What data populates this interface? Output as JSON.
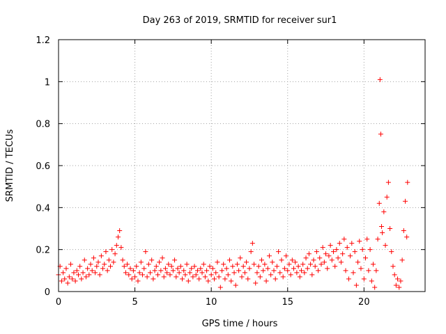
{
  "chart_data": {
    "type": "scatter",
    "title": "Day 263 of 2019, SRMTID for receiver sur1",
    "xlabel": "GPS time / hours",
    "ylabel": "SRMTID / TECUs",
    "xlim": [
      0,
      24
    ],
    "ylim": [
      0,
      1.2
    ],
    "xticks": [
      0,
      5,
      10,
      15,
      20
    ],
    "yticks": [
      0,
      0.2,
      0.4,
      0.6,
      0.8,
      1,
      1.2
    ],
    "xtick_labels": [
      "0",
      "5",
      "10",
      "15",
      "20"
    ],
    "ytick_labels": [
      "0",
      "0.2",
      "0.4",
      "0.6",
      "0.8",
      "1",
      "1.2"
    ],
    "grid": true,
    "marker": "+",
    "color": "#ff0000",
    "series": [
      {
        "name": "sur1",
        "points": [
          [
            0.0,
            0.08
          ],
          [
            0.1,
            0.12
          ],
          [
            0.2,
            0.05
          ],
          [
            0.3,
            0.09
          ],
          [
            0.4,
            0.06
          ],
          [
            0.5,
            0.11
          ],
          [
            0.6,
            0.04
          ],
          [
            0.7,
            0.07
          ],
          [
            0.8,
            0.13
          ],
          [
            0.9,
            0.06
          ],
          [
            1.0,
            0.09
          ],
          [
            1.1,
            0.05
          ],
          [
            1.2,
            0.1
          ],
          [
            1.3,
            0.08
          ],
          [
            1.4,
            0.12
          ],
          [
            1.5,
            0.06
          ],
          [
            1.6,
            0.09
          ],
          [
            1.7,
            0.15
          ],
          [
            1.8,
            0.07
          ],
          [
            1.9,
            0.11
          ],
          [
            2.0,
            0.08
          ],
          [
            2.1,
            0.13
          ],
          [
            2.2,
            0.1
          ],
          [
            2.3,
            0.16
          ],
          [
            2.4,
            0.09
          ],
          [
            2.5,
            0.12
          ],
          [
            2.6,
            0.14
          ],
          [
            2.7,
            0.08
          ],
          [
            2.8,
            0.17
          ],
          [
            2.9,
            0.11
          ],
          [
            3.0,
            0.13
          ],
          [
            3.1,
            0.19
          ],
          [
            3.2,
            0.1
          ],
          [
            3.3,
            0.15
          ],
          [
            3.4,
            0.12
          ],
          [
            3.5,
            0.2
          ],
          [
            3.6,
            0.14
          ],
          [
            3.7,
            0.18
          ],
          [
            3.8,
            0.22
          ],
          [
            3.9,
            0.26
          ],
          [
            4.0,
            0.29
          ],
          [
            4.1,
            0.21
          ],
          [
            4.2,
            0.15
          ],
          [
            4.3,
            0.12
          ],
          [
            4.4,
            0.09
          ],
          [
            4.5,
            0.13
          ],
          [
            4.6,
            0.08
          ],
          [
            4.7,
            0.11
          ],
          [
            4.8,
            0.06
          ],
          [
            4.9,
            0.1
          ],
          [
            5.0,
            0.07
          ],
          [
            5.1,
            0.12
          ],
          [
            5.2,
            0.05
          ],
          [
            5.3,
            0.09
          ],
          [
            5.4,
            0.14
          ],
          [
            5.5,
            0.08
          ],
          [
            5.6,
            0.11
          ],
          [
            5.7,
            0.19
          ],
          [
            5.8,
            0.07
          ],
          [
            5.9,
            0.13
          ],
          [
            6.0,
            0.09
          ],
          [
            6.1,
            0.15
          ],
          [
            6.2,
            0.06
          ],
          [
            6.3,
            0.1
          ],
          [
            6.4,
            0.12
          ],
          [
            6.5,
            0.08
          ],
          [
            6.6,
            0.14
          ],
          [
            6.7,
            0.1
          ],
          [
            6.8,
            0.16
          ],
          [
            6.9,
            0.07
          ],
          [
            7.0,
            0.11
          ],
          [
            7.1,
            0.09
          ],
          [
            7.2,
            0.13
          ],
          [
            7.3,
            0.08
          ],
          [
            7.4,
            0.12
          ],
          [
            7.5,
            0.1
          ],
          [
            7.6,
            0.15
          ],
          [
            7.7,
            0.07
          ],
          [
            7.8,
            0.11
          ],
          [
            7.9,
            0.09
          ],
          [
            8.0,
            0.12
          ],
          [
            8.1,
            0.06
          ],
          [
            8.2,
            0.1
          ],
          [
            8.3,
            0.08
          ],
          [
            8.4,
            0.13
          ],
          [
            8.5,
            0.05
          ],
          [
            8.6,
            0.09
          ],
          [
            8.7,
            0.11
          ],
          [
            8.8,
            0.07
          ],
          [
            8.9,
            0.12
          ],
          [
            9.0,
            0.08
          ],
          [
            9.1,
            0.1
          ],
          [
            9.2,
            0.06
          ],
          [
            9.3,
            0.11
          ],
          [
            9.4,
            0.09
          ],
          [
            9.5,
            0.13
          ],
          [
            9.6,
            0.07
          ],
          [
            9.7,
            0.1
          ],
          [
            9.8,
            0.05
          ],
          [
            9.9,
            0.12
          ],
          [
            10.0,
            0.08
          ],
          [
            10.1,
            0.11
          ],
          [
            10.2,
            0.06
          ],
          [
            10.3,
            0.09
          ],
          [
            10.4,
            0.14
          ],
          [
            10.5,
            0.07
          ],
          [
            10.6,
            0.02
          ],
          [
            10.7,
            0.1
          ],
          [
            10.8,
            0.13
          ],
          [
            10.9,
            0.06
          ],
          [
            11.0,
            0.11
          ],
          [
            11.1,
            0.08
          ],
          [
            11.2,
            0.15
          ],
          [
            11.3,
            0.05
          ],
          [
            11.4,
            0.12
          ],
          [
            11.5,
            0.09
          ],
          [
            11.6,
            0.03
          ],
          [
            11.7,
            0.13
          ],
          [
            11.8,
            0.1
          ],
          [
            11.9,
            0.16
          ],
          [
            12.0,
            0.07
          ],
          [
            12.1,
            0.12
          ],
          [
            12.2,
            0.09
          ],
          [
            12.3,
            0.14
          ],
          [
            12.4,
            0.06
          ],
          [
            12.5,
            0.11
          ],
          [
            12.6,
            0.19
          ],
          [
            12.7,
            0.23
          ],
          [
            12.8,
            0.13
          ],
          [
            12.9,
            0.04
          ],
          [
            13.0,
            0.09
          ],
          [
            13.1,
            0.12
          ],
          [
            13.2,
            0.07
          ],
          [
            13.3,
            0.15
          ],
          [
            13.4,
            0.1
          ],
          [
            13.5,
            0.13
          ],
          [
            13.6,
            0.05
          ],
          [
            13.7,
            0.11
          ],
          [
            13.8,
            0.17
          ],
          [
            13.9,
            0.08
          ],
          [
            14.0,
            0.14
          ],
          [
            14.1,
            0.1
          ],
          [
            14.2,
            0.06
          ],
          [
            14.3,
            0.12
          ],
          [
            14.4,
            0.19
          ],
          [
            14.5,
            0.09
          ],
          [
            14.6,
            0.15
          ],
          [
            14.7,
            0.07
          ],
          [
            14.8,
            0.11
          ],
          [
            14.9,
            0.17
          ],
          [
            15.0,
            0.1
          ],
          [
            15.1,
            0.13
          ],
          [
            15.2,
            0.08
          ],
          [
            15.3,
            0.15
          ],
          [
            15.4,
            0.11
          ],
          [
            15.5,
            0.14
          ],
          [
            15.6,
            0.09
          ],
          [
            15.7,
            0.12
          ],
          [
            15.8,
            0.07
          ],
          [
            15.9,
            0.1
          ],
          [
            16.0,
            0.13
          ],
          [
            16.1,
            0.09
          ],
          [
            16.2,
            0.16
          ],
          [
            16.3,
            0.11
          ],
          [
            16.4,
            0.18
          ],
          [
            16.5,
            0.13
          ],
          [
            16.6,
            0.08
          ],
          [
            16.7,
            0.15
          ],
          [
            16.8,
            0.12
          ],
          [
            16.9,
            0.19
          ],
          [
            17.0,
            0.1
          ],
          [
            17.1,
            0.16
          ],
          [
            17.2,
            0.13
          ],
          [
            17.3,
            0.21
          ],
          [
            17.4,
            0.14
          ],
          [
            17.5,
            0.18
          ],
          [
            17.6,
            0.11
          ],
          [
            17.7,
            0.17
          ],
          [
            17.8,
            0.22
          ],
          [
            17.9,
            0.15
          ],
          [
            18.0,
            0.19
          ],
          [
            18.1,
            0.12
          ],
          [
            18.2,
            0.2
          ],
          [
            18.3,
            0.16
          ],
          [
            18.4,
            0.23
          ],
          [
            18.5,
            0.14
          ],
          [
            18.6,
            0.18
          ],
          [
            18.7,
            0.25
          ],
          [
            18.8,
            0.1
          ],
          [
            18.9,
            0.21
          ],
          [
            19.0,
            0.06
          ],
          [
            19.1,
            0.17
          ],
          [
            19.2,
            0.23
          ],
          [
            19.3,
            0.09
          ],
          [
            19.4,
            0.19
          ],
          [
            19.5,
            0.03
          ],
          [
            19.6,
            0.14
          ],
          [
            19.7,
            0.24
          ],
          [
            19.8,
            0.11
          ],
          [
            19.9,
            0.2
          ],
          [
            20.0,
            0.06
          ],
          [
            20.1,
            0.16
          ],
          [
            20.2,
            0.25
          ],
          [
            20.3,
            0.1
          ],
          [
            20.4,
            0.2
          ],
          [
            20.5,
            0.05
          ],
          [
            20.6,
            0.13
          ],
          [
            20.7,
            0.02
          ],
          [
            20.8,
            0.1
          ],
          [
            20.9,
            0.25
          ],
          [
            21.0,
            0.42
          ],
          [
            21.05,
            1.01
          ],
          [
            21.1,
            0.75
          ],
          [
            21.15,
            0.31
          ],
          [
            21.2,
            0.28
          ],
          [
            21.3,
            0.38
          ],
          [
            21.4,
            0.22
          ],
          [
            21.5,
            0.45
          ],
          [
            21.6,
            0.52
          ],
          [
            21.7,
            0.3
          ],
          [
            21.8,
            0.19
          ],
          [
            21.9,
            0.12
          ],
          [
            22.0,
            0.08
          ],
          [
            22.1,
            0.03
          ],
          [
            22.2,
            0.06
          ],
          [
            22.3,
            0.02
          ],
          [
            22.4,
            0.05
          ],
          [
            22.5,
            0.15
          ],
          [
            22.6,
            0.29
          ],
          [
            22.7,
            0.43
          ],
          [
            22.8,
            0.26
          ],
          [
            22.85,
            0.52
          ]
        ]
      }
    ]
  }
}
